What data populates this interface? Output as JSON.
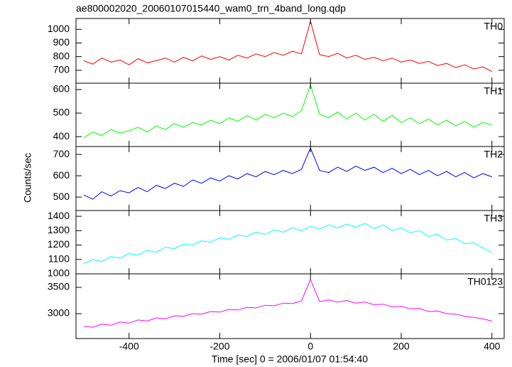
{
  "chart_data": {
    "type": "line",
    "title": "ae800002020_20060107015440_wam0_trn_4band_long.qdp",
    "xlabel": "Time [sec] 0 = 2006/01/07 01:54:40",
    "ylabel": "Counts/sec",
    "x": [
      -500,
      -480,
      -460,
      -440,
      -420,
      -400,
      -380,
      -360,
      -340,
      -320,
      -300,
      -280,
      -260,
      -240,
      -220,
      -200,
      -180,
      -160,
      -140,
      -120,
      -100,
      -80,
      -60,
      -40,
      -20,
      0,
      20,
      40,
      60,
      80,
      100,
      120,
      140,
      160,
      180,
      200,
      220,
      240,
      260,
      280,
      300,
      320,
      340,
      360,
      380,
      400
    ],
    "xlim": [
      -517,
      427
    ],
    "xticks": [
      -400,
      -200,
      0,
      200,
      400
    ],
    "series": [
      {
        "name": "TH0",
        "color": "#ff0000",
        "ylim": [
          605,
          1080
        ],
        "yticks": [
          700,
          800,
          900,
          1000
        ],
        "values": [
          770,
          745,
          790,
          760,
          775,
          740,
          785,
          755,
          770,
          790,
          760,
          795,
          770,
          805,
          780,
          800,
          775,
          810,
          790,
          820,
          800,
          830,
          810,
          840,
          820,
          1060,
          815,
          800,
          825,
          790,
          810,
          780,
          795,
          770,
          790,
          760,
          775,
          750,
          765,
          735,
          750,
          720,
          740,
          710,
          725,
          690
        ]
      },
      {
        "name": "TH1",
        "color": "#00ff00",
        "ylim": [
          358,
          627
        ],
        "yticks": [
          400,
          500,
          600
        ],
        "values": [
          395,
          420,
          405,
          430,
          415,
          425,
          440,
          420,
          445,
          430,
          455,
          440,
          460,
          450,
          470,
          455,
          480,
          465,
          490,
          470,
          495,
          480,
          500,
          485,
          510,
          620,
          495,
          480,
          505,
          475,
          500,
          470,
          495,
          465,
          490,
          460,
          480,
          455,
          475,
          450,
          470,
          445,
          465,
          440,
          460,
          450
        ]
      },
      {
        "name": "TH2",
        "color": "#0000ff",
        "ylim": [
          437,
          737
        ],
        "yticks": [
          500,
          600,
          700
        ],
        "values": [
          510,
          490,
          525,
          505,
          530,
          520,
          545,
          525,
          555,
          540,
          565,
          550,
          580,
          565,
          590,
          575,
          600,
          585,
          610,
          595,
          620,
          605,
          625,
          610,
          630,
          730,
          625,
          615,
          640,
          620,
          645,
          625,
          640,
          615,
          635,
          610,
          630,
          605,
          625,
          600,
          620,
          595,
          615,
          590,
          610,
          595
        ]
      },
      {
        "name": "TH3",
        "color": "#00ffff",
        "ylim": [
          1000,
          1440
        ],
        "yticks": [
          1000,
          1100,
          1200,
          1300,
          1400
        ],
        "values": [
          1070,
          1100,
          1085,
          1120,
          1110,
          1140,
          1130,
          1165,
          1150,
          1185,
          1175,
          1205,
          1200,
          1230,
          1220,
          1250,
          1240,
          1270,
          1260,
          1290,
          1275,
          1305,
          1290,
          1320,
          1300,
          1330,
          1310,
          1340,
          1320,
          1345,
          1325,
          1350,
          1315,
          1340,
          1300,
          1320,
          1285,
          1300,
          1260,
          1275,
          1235,
          1245,
          1210,
          1215,
          1180,
          1150
        ]
      },
      {
        "name": "TH0123",
        "color": "#ff00ff",
        "ylim": [
          2527,
          3757
        ],
        "yticks": [
          3000,
          3500
        ],
        "values": [
          2760,
          2740,
          2800,
          2780,
          2840,
          2820,
          2880,
          2860,
          2920,
          2900,
          2960,
          2950,
          3000,
          2990,
          3040,
          3030,
          3080,
          3070,
          3120,
          3110,
          3160,
          3150,
          3200,
          3190,
          3240,
          3650,
          3230,
          3260,
          3220,
          3250,
          3200,
          3220,
          3170,
          3180,
          3130,
          3140,
          3090,
          3100,
          3040,
          3050,
          3000,
          2990,
          2950,
          2930,
          2900,
          2860
        ]
      }
    ]
  }
}
